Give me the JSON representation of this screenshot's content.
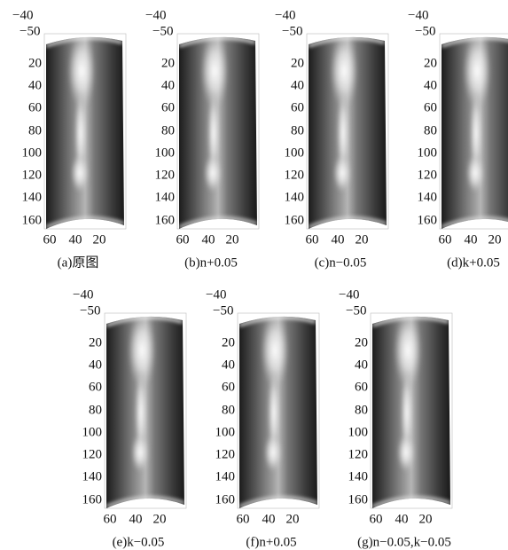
{
  "panels": [
    {
      "caption": "(a)原图",
      "y_labels": [
        "−40",
        "−50",
        "20",
        "40",
        "60",
        "80",
        "100",
        "120",
        "140",
        "160"
      ],
      "x_labels": [
        "60",
        "40",
        "20"
      ]
    },
    {
      "caption": "(b)n+0.05",
      "y_labels": [
        "−40",
        "−50",
        "20",
        "40",
        "60",
        "80",
        "100",
        "120",
        "140",
        "160"
      ],
      "x_labels": [
        "60",
        "40",
        "20"
      ]
    },
    {
      "caption": "(c)n−0.05",
      "y_labels": [
        "−40",
        "−50",
        "20",
        "40",
        "60",
        "80",
        "100",
        "120",
        "140",
        "160"
      ],
      "x_labels": [
        "60",
        "40",
        "20"
      ]
    },
    {
      "caption": "(d)k+0.05",
      "y_labels": [
        "−40",
        "−50",
        "20",
        "40",
        "60",
        "80",
        "100",
        "120",
        "140",
        "160"
      ],
      "x_labels": [
        "60",
        "40",
        "20"
      ]
    },
    {
      "caption": "(e)k−0.05",
      "y_labels": [
        "−40",
        "−50",
        "20",
        "40",
        "60",
        "80",
        "100",
        "120",
        "140",
        "160"
      ],
      "x_labels": [
        "60",
        "40",
        "20"
      ]
    },
    {
      "caption": "(f)n+0.05",
      "y_labels": [
        "−40",
        "−50",
        "20",
        "40",
        "60",
        "80",
        "100",
        "120",
        "140",
        "160"
      ],
      "x_labels": [
        "60",
        "40",
        "20"
      ]
    },
    {
      "caption": "(g)n−0.05,k−0.05",
      "y_labels": [
        "−40",
        "−50",
        "20",
        "40",
        "60",
        "80",
        "100",
        "120",
        "140",
        "160"
      ],
      "x_labels": [
        "60",
        "40",
        "20"
      ]
    }
  ]
}
